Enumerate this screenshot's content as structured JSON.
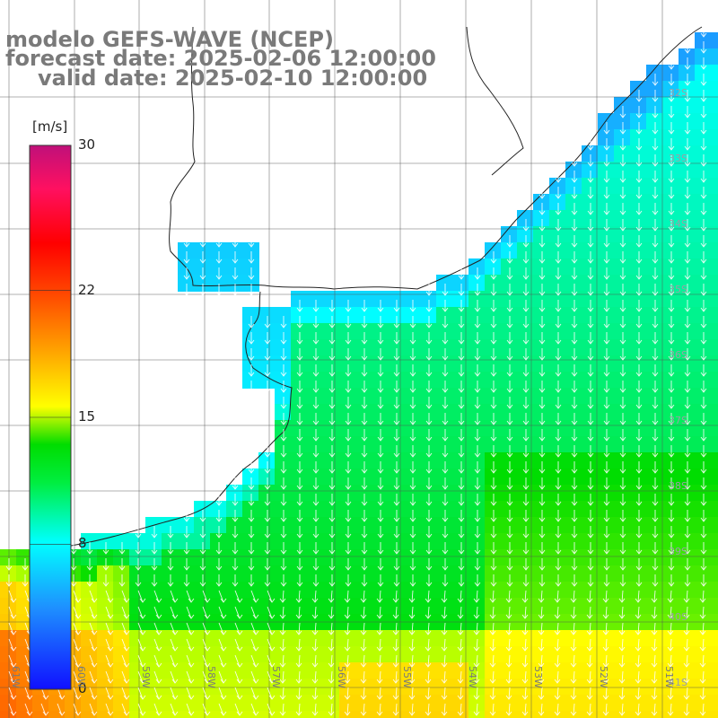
{
  "title": {
    "model": "modelo GEFS-WAVE (NCEP)",
    "forecast": "forecast date: 2025-02-06 12:00:00",
    "valid": "valid date: 2025-02-10 12:00:00"
  },
  "colorbar": {
    "unit": "[m/s]",
    "min": 0,
    "max": 30,
    "ticks": [
      {
        "value": 30,
        "label": "30"
      },
      {
        "value": 22,
        "label": "22"
      },
      {
        "value": 15,
        "label": "15"
      },
      {
        "value": 8,
        "label": "8"
      },
      {
        "value": 0,
        "label": "0"
      }
    ],
    "colors": [
      "#1010ff",
      "#1e90ff",
      "#00ffff",
      "#00ff90",
      "#00ee00",
      "#7fff00",
      "#ffff00",
      "#ffa500",
      "#ff4500",
      "#ff0000",
      "#ff2060",
      "#c8107a"
    ]
  },
  "map": {
    "lat_labels": [
      "32S",
      "33S",
      "34S",
      "35S",
      "36S",
      "37S",
      "38S",
      "39S",
      "40S",
      "41S"
    ],
    "lon_labels": [
      "61W",
      "60W",
      "59W",
      "58W",
      "57W",
      "56W",
      "55W",
      "54W",
      "53W",
      "52W",
      "51W"
    ],
    "field_variable": "wind speed",
    "vector_direction": "south"
  }
}
